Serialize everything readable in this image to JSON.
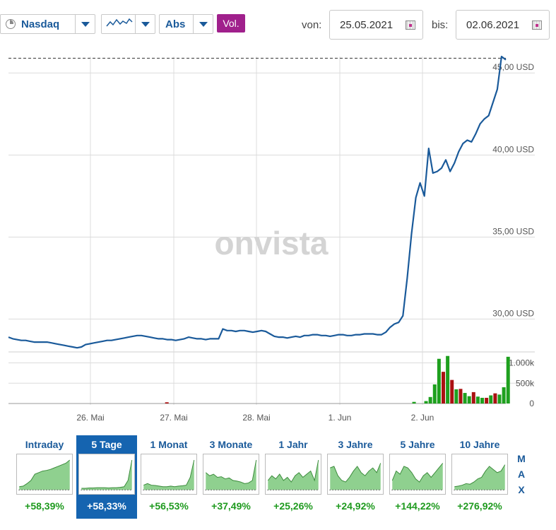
{
  "toolbar": {
    "exchange": "Nasdaq",
    "mode": "Abs",
    "vol_label": "Vol.",
    "from_label": "von:",
    "from_date": "25.05.2021",
    "to_label": "bis:",
    "to_date": "02.06.2021"
  },
  "watermark": "onvista",
  "chart_data": {
    "type": "line",
    "x_ticks": [
      "26. Mai",
      "27. Mai",
      "28. Mai",
      "1. Jun",
      "2. Jun"
    ],
    "y_ticks": [
      "30,00 USD",
      "35,00 USD",
      "40,00 USD",
      "45,00 USD"
    ],
    "ylim": [
      28.0,
      46.0
    ],
    "last_value_reference": 45.9,
    "price_series": [
      28.9,
      28.8,
      28.75,
      28.7,
      28.7,
      28.65,
      28.6,
      28.6,
      28.6,
      28.6,
      28.55,
      28.5,
      28.45,
      28.4,
      28.35,
      28.3,
      28.25,
      28.3,
      28.45,
      28.5,
      28.55,
      28.6,
      28.65,
      28.7,
      28.7,
      28.75,
      28.8,
      28.85,
      28.9,
      28.95,
      29.0,
      29.0,
      28.95,
      28.9,
      28.85,
      28.8,
      28.8,
      28.75,
      28.75,
      28.7,
      28.75,
      28.8,
      28.9,
      28.85,
      28.8,
      28.8,
      28.75,
      28.8,
      28.8,
      28.8,
      29.4,
      29.3,
      29.3,
      29.25,
      29.3,
      29.3,
      29.25,
      29.2,
      29.25,
      29.3,
      29.25,
      29.1,
      28.95,
      28.9,
      28.9,
      28.85,
      28.9,
      28.95,
      28.9,
      29.0,
      29.0,
      29.05,
      29.05,
      29.0,
      29.0,
      28.95,
      29.0,
      29.05,
      29.05,
      29.0,
      29.0,
      29.05,
      29.05,
      29.1,
      29.1,
      29.1,
      29.05,
      29.05,
      29.2,
      29.5,
      29.7,
      29.8,
      30.2,
      32.5,
      35.2,
      37.4,
      38.3,
      37.5,
      40.4,
      38.9,
      39.0,
      39.2,
      39.7,
      39.0,
      39.5,
      40.2,
      40.7,
      40.9,
      40.8,
      41.3,
      41.9,
      42.2,
      42.4,
      43.2,
      44.0,
      46.0,
      45.8
    ],
    "volume_axis_ticks": [
      "1.000k",
      "500k",
      "0"
    ],
    "volume_max": 1200,
    "volume_bars": [
      {
        "t": 0.33,
        "v": 30,
        "c": "#aa1111"
      },
      {
        "t": 0.845,
        "v": 40,
        "c": "#1ea01e"
      },
      {
        "t": 0.87,
        "v": 60,
        "c": "#1ea01e"
      },
      {
        "t": 0.879,
        "v": 160,
        "c": "#1ea01e"
      },
      {
        "t": 0.888,
        "v": 470,
        "c": "#1ea01e"
      },
      {
        "t": 0.897,
        "v": 1100,
        "c": "#1ea01e"
      },
      {
        "t": 0.906,
        "v": 780,
        "c": "#aa1111"
      },
      {
        "t": 0.915,
        "v": 1170,
        "c": "#1ea01e"
      },
      {
        "t": 0.924,
        "v": 580,
        "c": "#aa1111"
      },
      {
        "t": 0.933,
        "v": 350,
        "c": "#1ea01e"
      },
      {
        "t": 0.942,
        "v": 360,
        "c": "#aa1111"
      },
      {
        "t": 0.951,
        "v": 260,
        "c": "#1ea01e"
      },
      {
        "t": 0.96,
        "v": 180,
        "c": "#1ea01e"
      },
      {
        "t": 0.969,
        "v": 280,
        "c": "#aa1111"
      },
      {
        "t": 0.978,
        "v": 170,
        "c": "#1ea01e"
      },
      {
        "t": 0.987,
        "v": 140,
        "c": "#1ea01e"
      },
      {
        "t": 0.996,
        "v": 140,
        "c": "#aa1111"
      },
      {
        "t": 1.005,
        "v": 200,
        "c": "#1ea01e"
      },
      {
        "t": 1.014,
        "v": 250,
        "c": "#aa1111"
      },
      {
        "t": 1.023,
        "v": 220,
        "c": "#1ea01e"
      },
      {
        "t": 1.032,
        "v": 400,
        "c": "#1ea01e"
      },
      {
        "t": 1.041,
        "v": 1150,
        "c": "#1ea01e"
      }
    ]
  },
  "periods": [
    {
      "label": "Intraday",
      "change": "+58,39%",
      "spark": [
        0.1,
        0.12,
        0.2,
        0.3,
        0.5,
        0.55,
        0.6,
        0.62,
        0.65,
        0.7,
        0.75,
        0.8,
        0.85,
        0.95
      ]
    },
    {
      "label": "5 Tage",
      "change": "+58,33%",
      "spark": [
        0.05,
        0.05,
        0.06,
        0.06,
        0.07,
        0.07,
        0.07,
        0.06,
        0.07,
        0.07,
        0.08,
        0.1,
        0.3,
        0.95
      ]
    },
    {
      "label": "1 Monat",
      "change": "+56,53%",
      "spark": [
        0.15,
        0.2,
        0.15,
        0.14,
        0.12,
        0.1,
        0.1,
        0.12,
        0.1,
        0.12,
        0.13,
        0.15,
        0.4,
        0.95
      ]
    },
    {
      "label": "3 Monate",
      "change": "+37,49%",
      "spark": [
        0.55,
        0.45,
        0.5,
        0.4,
        0.42,
        0.35,
        0.38,
        0.3,
        0.28,
        0.25,
        0.2,
        0.22,
        0.3,
        0.95
      ]
    },
    {
      "label": "1 Jahr",
      "change": "+25,26%",
      "spark": [
        0.3,
        0.45,
        0.35,
        0.5,
        0.3,
        0.4,
        0.25,
        0.45,
        0.55,
        0.4,
        0.5,
        0.6,
        0.3,
        0.95
      ]
    },
    {
      "label": "3 Jahre",
      "change": "+24,92%",
      "spark": [
        0.7,
        0.75,
        0.45,
        0.3,
        0.25,
        0.4,
        0.6,
        0.75,
        0.55,
        0.45,
        0.6,
        0.7,
        0.55,
        0.85
      ]
    },
    {
      "label": "5 Jahre",
      "change": "+144,22%",
      "spark": [
        0.3,
        0.6,
        0.5,
        0.75,
        0.7,
        0.55,
        0.35,
        0.25,
        0.45,
        0.55,
        0.4,
        0.55,
        0.7,
        0.85
      ]
    },
    {
      "label": "10 Jahre",
      "change": "+276,92%",
      "spark": [
        0.1,
        0.12,
        0.15,
        0.2,
        0.18,
        0.25,
        0.35,
        0.4,
        0.6,
        0.75,
        0.65,
        0.55,
        0.6,
        0.8
      ]
    }
  ],
  "max_letters": [
    "M",
    "A",
    "X"
  ],
  "colors": {
    "line": "#1a5a9a",
    "grid": "#dcdcdc",
    "thumb_fill": "#8fd08f",
    "thumb_stroke": "#3a8a3a",
    "active_tab": "#1564b0",
    "vol_button": "#a0208c"
  }
}
